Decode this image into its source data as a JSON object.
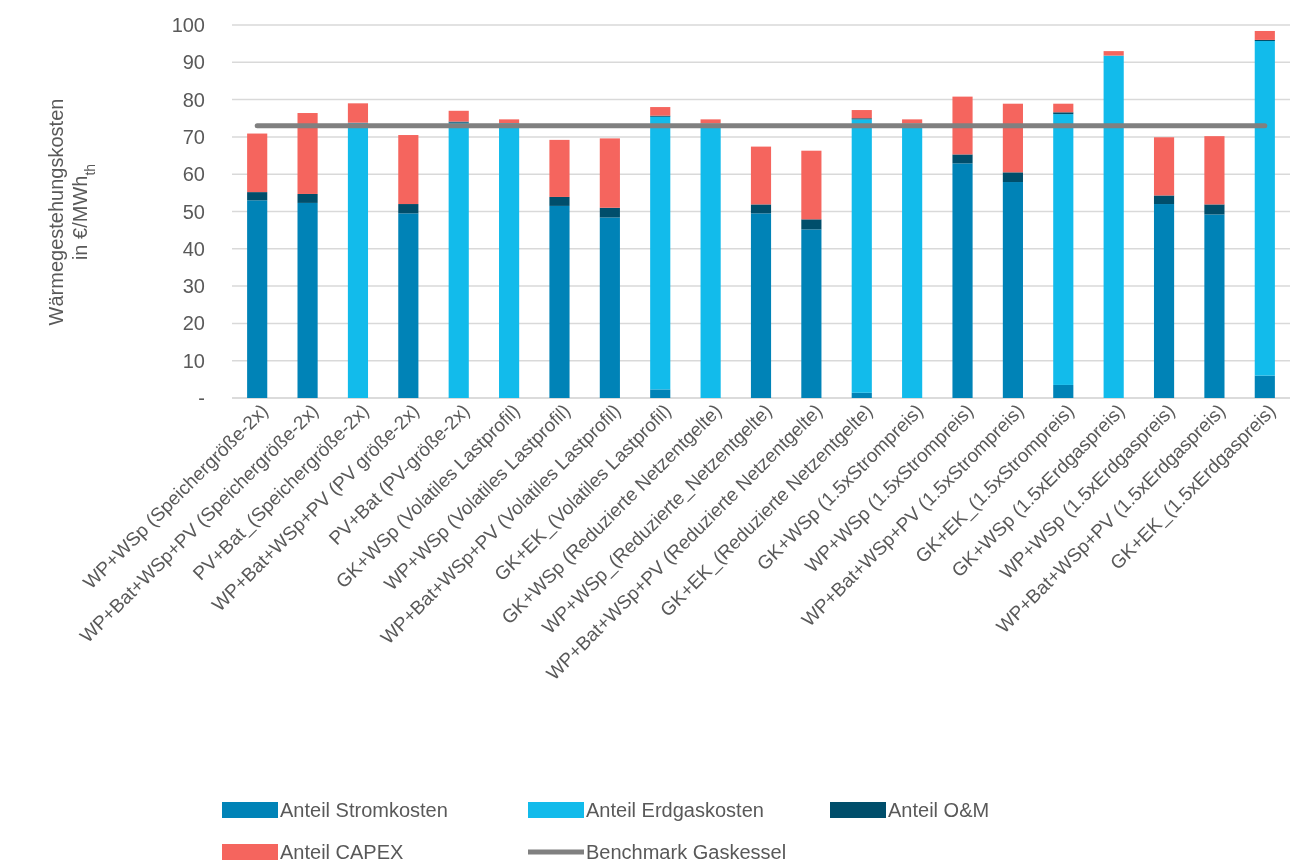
{
  "chart_data": {
    "type": "bar",
    "stacked": true,
    "ylabel": "Wärmegestehungskosten\nin €/MWh$_{th}$",
    "categories": [
      "WP+WSp (Speichergröße-2x)",
      "WP+Bat+WSp+PV (Speichergröße-2x)",
      "PV+Bat_(Speichergröße-2x)",
      "WP+Bat+WSp+PV (PV größe-2x)",
      "PV+Bat (PV-größe-2x)",
      "GK+WSp (Volatiles Lastprofil)",
      "WP+WSp (Volatiles Lastprofil)",
      "WP+Bat+WSp+PV (Volatiles Lastprofil)",
      "GK+EK_(Volatiles Lastprofil)",
      "GK+WSp (Reduzierte Netzentgelte)",
      "WP+WSp_(Reduzierte_Netzentgelte)",
      "WP+Bat+WSp+PV (Reduzierte Netzentgelte)",
      "GK+EK_(Reduzierte Netzentgelte)",
      "GK+WSp (1.5xStrompreis)",
      "WP+WSp (1.5xStrompreis)",
      "WP+Bat+WSp+PV (1.5xStrompreis)",
      "GK+EK_(1.5xStrompreis)",
      "GK+WSp (1.5xErdgaspreis)",
      "WP+WSp (1.5xErdgaspreis)",
      "WP+Bat+WSp+PV (1.5xErdgaspreis)",
      "GK+EK_(1.5xErdgaspreis)"
    ],
    "series": [
      {
        "name": "Anteil Stromkosten",
        "color": "#0083b7",
        "values": [
          53.0,
          52.3,
          null,
          49.5,
          null,
          null,
          51.5,
          48.4,
          2.3,
          null,
          49.5,
          45.2,
          1.4,
          null,
          62.9,
          57.9,
          3.5,
          null,
          52.0,
          49.2,
          6.0
        ]
      },
      {
        "name": "Anteil Erdgaskosten",
        "color": "#12bbeb",
        "values": [
          null,
          null,
          73.8,
          null,
          73.8,
          73.7,
          null,
          null,
          73.1,
          73.6,
          null,
          null,
          73.3,
          73.6,
          null,
          null,
          72.6,
          91.8,
          null,
          null,
          89.7
        ]
      },
      {
        "name": "Anteil O&M",
        "color": "#004e6b",
        "values": [
          2.2,
          2.4,
          null,
          2.5,
          0.3,
          null,
          2.4,
          2.6,
          0.3,
          null,
          2.4,
          2.7,
          0.3,
          null,
          2.4,
          2.6,
          0.5,
          null,
          2.3,
          2.7,
          0.3
        ]
      },
      {
        "name": "Anteil CAPEX",
        "color": "#f5655e",
        "values": [
          15.7,
          21.7,
          5.2,
          18.5,
          2.9,
          1.0,
          15.3,
          18.6,
          2.3,
          1.1,
          15.5,
          18.4,
          2.2,
          1.1,
          15.5,
          18.4,
          2.3,
          1.2,
          15.6,
          18.3,
          2.4
        ]
      },
      {
        "name": "Benchmark Gaskessel",
        "type": "line",
        "color": "#808080",
        "values": [
          73,
          73,
          73,
          73,
          73,
          73,
          73,
          73,
          73,
          73,
          73,
          73,
          73,
          73,
          73,
          73,
          73,
          73,
          73,
          73,
          73
        ]
      }
    ],
    "ylim": [
      0,
      100
    ],
    "yticks": [
      {
        "value": 0,
        "label": "-"
      },
      10,
      20,
      30,
      40,
      50,
      60,
      70,
      80,
      90,
      100
    ],
    "grid": "y",
    "legend": "bottom"
  }
}
